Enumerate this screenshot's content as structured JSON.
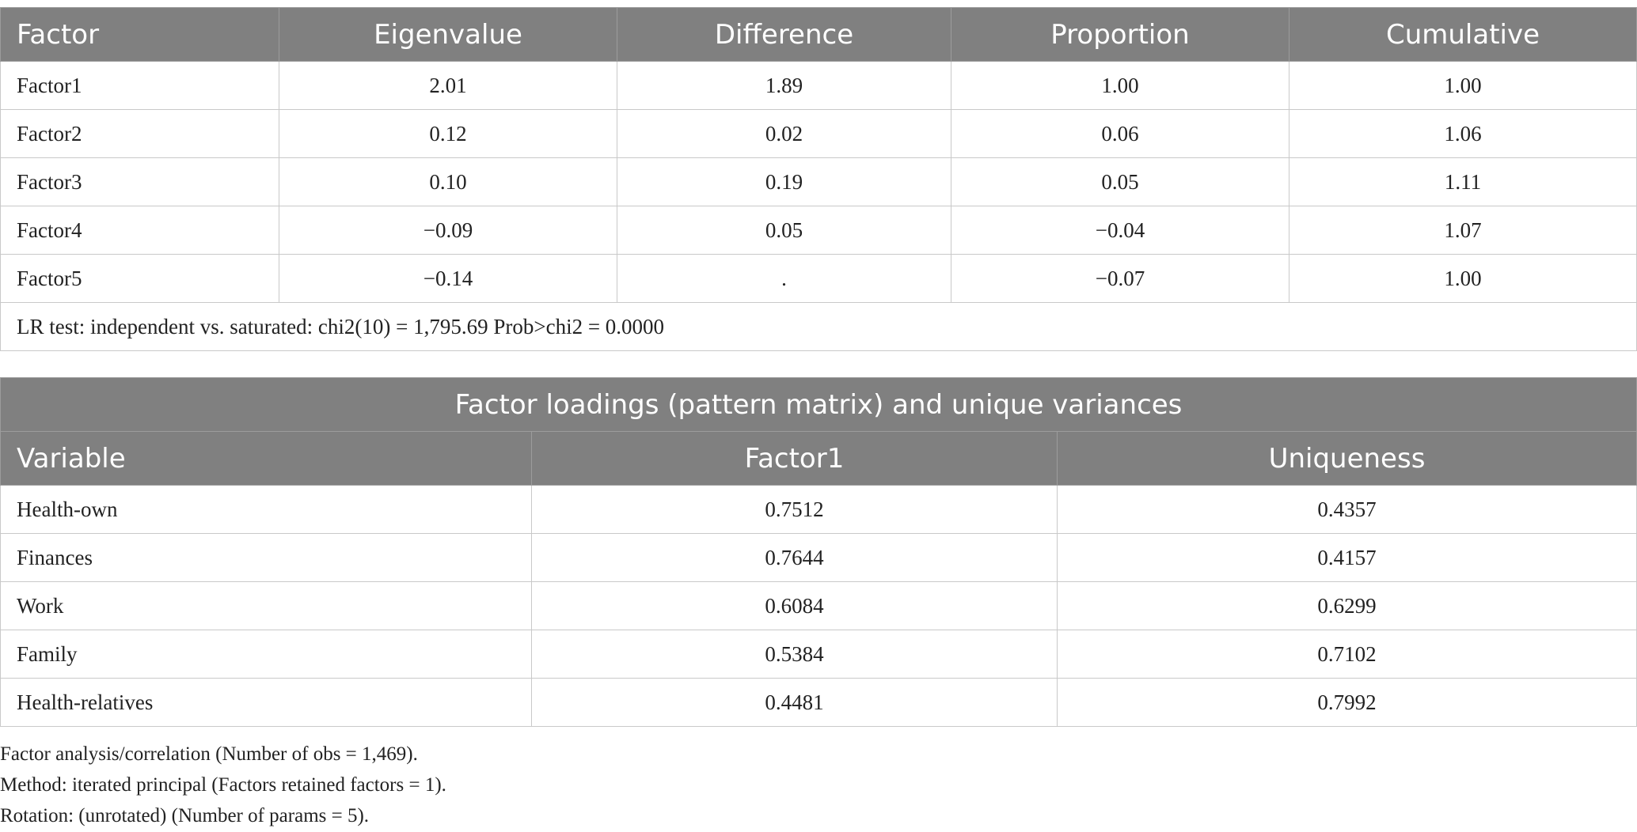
{
  "eigen_table": {
    "headers": [
      "Factor",
      "Eigenvalue",
      "Difference",
      "Proportion",
      "Cumulative"
    ],
    "rows": [
      [
        "Factor1",
        "2.01",
        "1.89",
        "1.00",
        "1.00"
      ],
      [
        "Factor2",
        "0.12",
        "0.02",
        "0.06",
        "1.06"
      ],
      [
        "Factor3",
        "0.10",
        "0.19",
        "0.05",
        "1.11"
      ],
      [
        "Factor4",
        "−0.09",
        "0.05",
        "−0.04",
        "1.07"
      ],
      [
        "Factor5",
        "−0.14",
        ".",
        "−0.07",
        "1.00"
      ]
    ],
    "note": "LR test: independent vs. saturated: chi2(10) = 1,795.69 Prob>chi2 = 0.0000"
  },
  "loadings_table": {
    "caption": "Factor loadings (pattern matrix) and unique variances",
    "headers": [
      "Variable",
      "Factor1",
      "Uniqueness"
    ],
    "rows": [
      [
        "Health-own",
        "0.7512",
        "0.4357"
      ],
      [
        "Finances",
        "0.7644",
        "0.4157"
      ],
      [
        "Work",
        "0.6084",
        "0.6299"
      ],
      [
        "Family",
        "0.5384",
        "0.7102"
      ],
      [
        "Health-relatives",
        "0.4481",
        "0.7992"
      ]
    ]
  },
  "footnotes": [
    "Factor analysis/correlation (Number of obs = 1,469).",
    "Method: iterated principal (Factors retained factors = 1).",
    "Rotation: (unrotated) (Number of params = 5)."
  ]
}
